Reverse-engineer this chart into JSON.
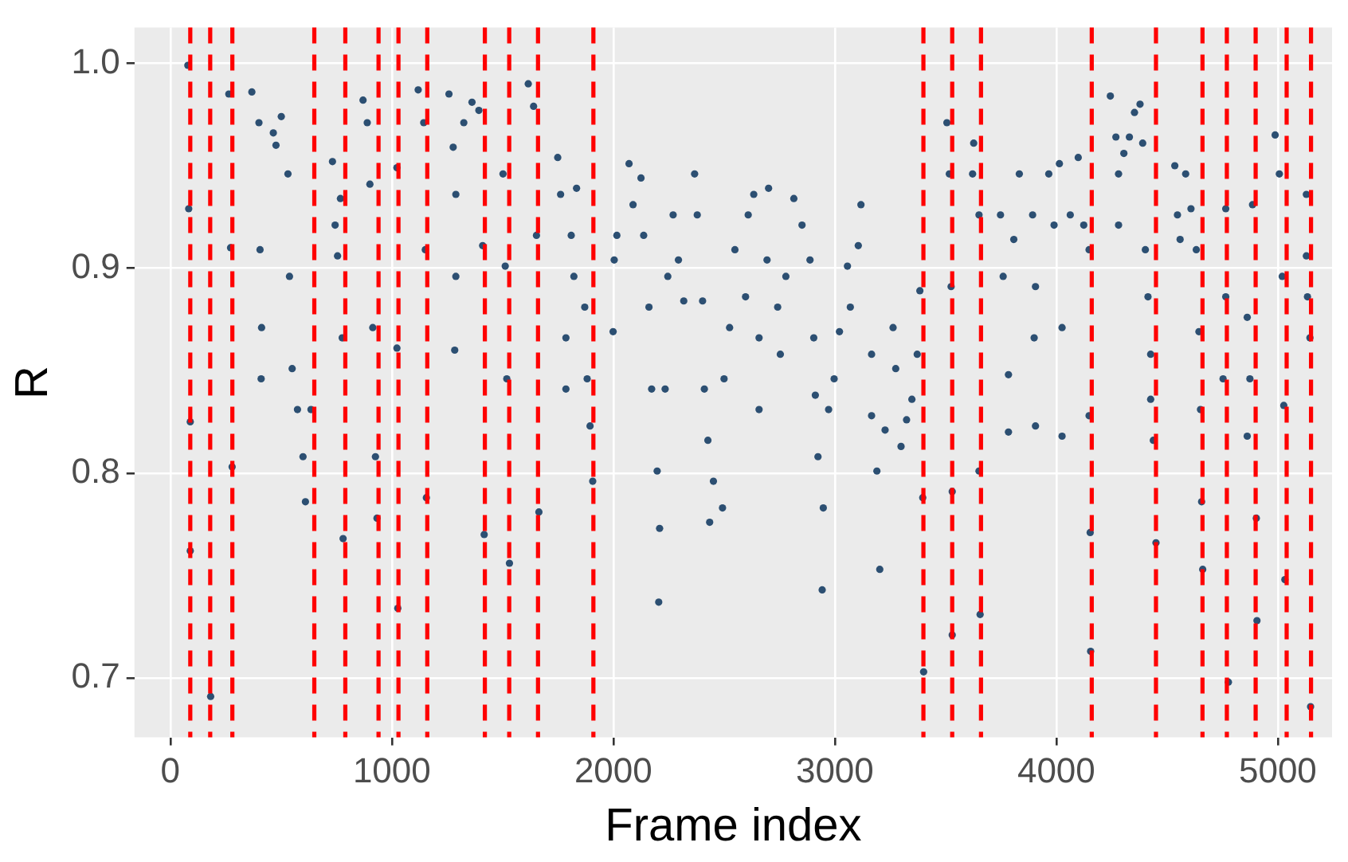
{
  "chart_data": {
    "type": "scatter",
    "xlabel": "Frame index",
    "ylabel": "R",
    "xlim": [
      -162,
      5245
    ],
    "ylim": [
      0.671,
      1.0175
    ],
    "xticks": [
      0,
      1000,
      2000,
      3000,
      4000,
      5000
    ],
    "yticks": [
      0.7,
      0.8,
      0.9,
      {
        "value": 1,
        "label": "1.0"
      }
    ],
    "grid": true,
    "legend": false,
    "marker": "circle",
    "ref_lines": [
      {
        "axis": "x",
        "value": 90,
        "color": "#ff0000",
        "line_style": "dashed"
      },
      {
        "axis": "x",
        "value": 180,
        "color": "#ff0000",
        "line_style": "dashed"
      },
      {
        "axis": "x",
        "value": 280,
        "color": "#ff0000",
        "line_style": "dashed"
      },
      {
        "axis": "x",
        "value": 650,
        "color": "#ff0000",
        "line_style": "dashed"
      },
      {
        "axis": "x",
        "value": 790,
        "color": "#ff0000",
        "line_style": "dashed"
      },
      {
        "axis": "x",
        "value": 940,
        "color": "#ff0000",
        "line_style": "dashed"
      },
      {
        "axis": "x",
        "value": 1030,
        "color": "#ff0000",
        "line_style": "dashed"
      },
      {
        "axis": "x",
        "value": 1160,
        "color": "#ff0000",
        "line_style": "dashed"
      },
      {
        "axis": "x",
        "value": 1420,
        "color": "#ff0000",
        "line_style": "dashed"
      },
      {
        "axis": "x",
        "value": 1530,
        "color": "#ff0000",
        "line_style": "dashed"
      },
      {
        "axis": "x",
        "value": 1660,
        "color": "#ff0000",
        "line_style": "dashed"
      },
      {
        "axis": "x",
        "value": 1910,
        "color": "#ff0000",
        "line_style": "dashed"
      },
      {
        "axis": "x",
        "value": 3400,
        "color": "#ff0000",
        "line_style": "dashed"
      },
      {
        "axis": "x",
        "value": 3530,
        "color": "#ff0000",
        "line_style": "dashed"
      },
      {
        "axis": "x",
        "value": 3660,
        "color": "#ff0000",
        "line_style": "dashed"
      },
      {
        "axis": "x",
        "value": 4160,
        "color": "#ff0000",
        "line_style": "dashed"
      },
      {
        "axis": "x",
        "value": 4450,
        "color": "#ff0000",
        "line_style": "dashed"
      },
      {
        "axis": "x",
        "value": 4660,
        "color": "#ff0000",
        "line_style": "dashed"
      },
      {
        "axis": "x",
        "value": 4770,
        "color": "#ff0000",
        "line_style": "dashed"
      },
      {
        "axis": "x",
        "value": 4900,
        "color": "#ff0000",
        "line_style": "dashed"
      },
      {
        "axis": "x",
        "value": 5040,
        "color": "#ff0000",
        "line_style": "dashed"
      },
      {
        "axis": "x",
        "value": 5150,
        "color": "#ff0000",
        "line_style": "dashed"
      }
    ],
    "series": [
      {
        "color": "#2c4f72",
        "x": [
          79,
          83,
          90,
          90,
          182,
          264,
          272,
          279,
          368,
          400,
          465,
          501,
          477,
          405,
          412,
          410,
          531,
          538,
          550,
          574,
          599,
          610,
          635,
          732,
          744,
          755,
          768,
          776,
          780,
          870,
          889,
          901,
          914,
          926,
          933,
          1023,
          1023,
          1027,
          1119,
          1144,
          1151,
          1156,
          1258,
          1277,
          1289,
          1289,
          1284,
          1325,
          1362,
          1393,
          1410,
          1417,
          1502,
          1512,
          1519,
          1531,
          1616,
          1640,
          1653,
          1664,
          1749,
          1762,
          1834,
          1810,
          1822,
          1786,
          1786,
          1871,
          1882,
          1895,
          1907,
          2004,
          1999,
          2016,
          2071,
          2089,
          2125,
          2137,
          2161,
          2173,
          2198,
          2209,
          2205,
          2234,
          2246,
          2270,
          2294,
          2318,
          2367,
          2379,
          2403,
          2411,
          2427,
          2452,
          2435,
          2493,
          2500,
          2525,
          2549,
          2597,
          2609,
          2634,
          2658,
          2658,
          2701,
          2694,
          2742,
          2754,
          2779,
          2815,
          2852,
          2888,
          2905,
          2912,
          2924,
          2948,
          2943,
          2972,
          2997,
          3021,
          3057,
          3070,
          3106,
          3118,
          3166,
          3166,
          3190,
          3203,
          3227,
          3263,
          3275,
          3299,
          3324,
          3348,
          3372,
          3384,
          3397,
          3401,
          3506,
          3517,
          3525,
          3530,
          3530,
          3627,
          3622,
          3651,
          3651,
          3656,
          3748,
          3760,
          3784,
          3784,
          3833,
          3808,
          3893,
          3906,
          3900,
          3906,
          3966,
          3990,
          4014,
          4026,
          4026,
          4063,
          4099,
          4124,
          4148,
          4148,
          4153,
          4155,
          4244,
          4269,
          4281,
          4281,
          4305,
          4330,
          4353,
          4378,
          4390,
          4402,
          4414,
          4426,
          4426,
          4438,
          4450,
          4535,
          4547,
          4559,
          4584,
          4608,
          4632,
          4644,
          4651,
          4656,
          4661,
          4753,
          4765,
          4765,
          4777,
          4862,
          4874,
          4862,
          4886,
          4903,
          4906,
          4988,
          5007,
          5020,
          5027,
          5032,
          5129,
          5129,
          5134,
          5148,
          5145
        ],
        "values": [
          0.999,
          0.929,
          0.825,
          0.762,
          0.691,
          0.985,
          0.91,
          0.803,
          0.986,
          0.971,
          0.966,
          0.974,
          0.96,
          0.909,
          0.871,
          0.846,
          0.946,
          0.896,
          0.851,
          0.831,
          0.808,
          0.786,
          0.831,
          0.952,
          0.921,
          0.906,
          0.934,
          0.866,
          0.768,
          0.982,
          0.971,
          0.941,
          0.871,
          0.808,
          0.778,
          0.949,
          0.861,
          0.734,
          0.987,
          0.971,
          0.909,
          0.788,
          0.985,
          0.959,
          0.936,
          0.896,
          0.86,
          0.971,
          0.981,
          0.977,
          0.911,
          0.77,
          0.946,
          0.901,
          0.846,
          0.756,
          0.99,
          0.979,
          0.916,
          0.781,
          0.954,
          0.936,
          0.939,
          0.916,
          0.896,
          0.866,
          0.841,
          0.881,
          0.846,
          0.823,
          0.796,
          0.904,
          0.869,
          0.916,
          0.951,
          0.931,
          0.944,
          0.916,
          0.881,
          0.841,
          0.801,
          0.773,
          0.737,
          0.841,
          0.896,
          0.926,
          0.904,
          0.884,
          0.946,
          0.926,
          0.884,
          0.841,
          0.816,
          0.796,
          0.776,
          0.783,
          0.846,
          0.871,
          0.909,
          0.886,
          0.926,
          0.936,
          0.866,
          0.831,
          0.939,
          0.904,
          0.881,
          0.858,
          0.896,
          0.934,
          0.921,
          0.904,
          0.866,
          0.838,
          0.808,
          0.783,
          0.743,
          0.831,
          0.846,
          0.869,
          0.901,
          0.881,
          0.911,
          0.931,
          0.858,
          0.828,
          0.801,
          0.753,
          0.821,
          0.871,
          0.851,
          0.813,
          0.826,
          0.836,
          0.858,
          0.889,
          0.788,
          0.703,
          0.971,
          0.946,
          0.891,
          0.791,
          0.721,
          0.961,
          0.946,
          0.926,
          0.801,
          0.731,
          0.926,
          0.896,
          0.848,
          0.82,
          0.946,
          0.914,
          0.926,
          0.891,
          0.866,
          0.823,
          0.946,
          0.921,
          0.951,
          0.871,
          0.818,
          0.926,
          0.954,
          0.921,
          0.909,
          0.828,
          0.771,
          0.713,
          0.984,
          0.964,
          0.946,
          0.921,
          0.956,
          0.964,
          0.976,
          0.98,
          0.961,
          0.909,
          0.886,
          0.858,
          0.836,
          0.816,
          0.766,
          0.95,
          0.926,
          0.914,
          0.946,
          0.929,
          0.909,
          0.869,
          0.831,
          0.786,
          0.753,
          0.846,
          0.886,
          0.929,
          0.698,
          0.876,
          0.846,
          0.818,
          0.931,
          0.778,
          0.728,
          0.965,
          0.946,
          0.896,
          0.833,
          0.748,
          0.936,
          0.906,
          0.886,
          0.686,
          0.866
        ]
      }
    ]
  }
}
